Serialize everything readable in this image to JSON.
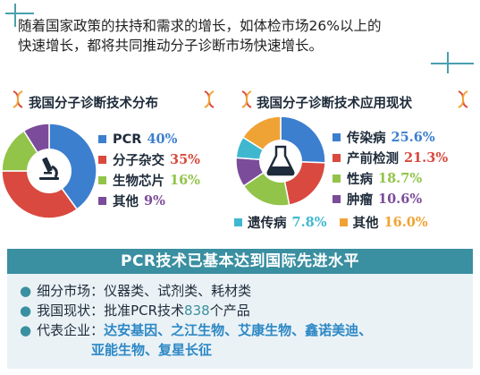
{
  "intro": {
    "line1": "随着国家政策的扶持和需求的增长，如体检市场26%以上的",
    "line2": "快速增长，都将共同推动分子诊断市场快速增长。"
  },
  "colors": {
    "teal": "#3a8fa0",
    "blue": "#3c7fcf",
    "red": "#d9493f",
    "green": "#92c44a",
    "purple": "#7b4c9a",
    "orange": "#f0a335",
    "cyan": "#3fb8cf"
  },
  "chart_data": [
    {
      "type": "pie",
      "title": "我国分子诊断技术分布",
      "icon": "microscope-icon",
      "slices": [
        {
          "label": "PCR",
          "value": 40,
          "display": "40%",
          "color": "#3c7fcf"
        },
        {
          "label": "分子杂交",
          "value": 35,
          "display": "35%",
          "color": "#d9493f"
        },
        {
          "label": "生物芯片",
          "value": 16,
          "display": "16%",
          "color": "#92c44a"
        },
        {
          "label": "其他",
          "value": 9,
          "display": "9%",
          "color": "#7b4c9a"
        }
      ]
    },
    {
      "type": "pie",
      "title": "我国分子诊断技术应用现状",
      "icon": "flask-icon",
      "slices": [
        {
          "label": "传染病",
          "value": 25.6,
          "display": "25.6%",
          "color": "#3c7fcf"
        },
        {
          "label": "产前检测",
          "value": 21.3,
          "display": "21.3%",
          "color": "#d9493f"
        },
        {
          "label": "性病",
          "value": 18.7,
          "display": "18.7%",
          "color": "#92c44a"
        },
        {
          "label": "肿瘤",
          "value": 10.6,
          "display": "10.6%",
          "color": "#7b4c9a"
        },
        {
          "label": "遗传病",
          "value": 7.8,
          "display": "7.8%",
          "color": "#3fb8cf"
        },
        {
          "label": "其他",
          "value": 16.0,
          "display": "16.0%",
          "color": "#f0a335"
        }
      ]
    }
  ],
  "banner": "PCR技术已基本达到国际先进水平",
  "bullets": {
    "b1": "细分市场：仪器类、试剂类、耗材类",
    "b2_pre": "我国现状：批准PCR技术",
    "b2_num": "838",
    "b2_post": "个产品",
    "b3_pre": "代表企业：",
    "b3_companies_1": "达安基因、之江生物、艾康生物、鑫诺美迪、",
    "b3_companies_2": "亚能生物、复星长征"
  }
}
